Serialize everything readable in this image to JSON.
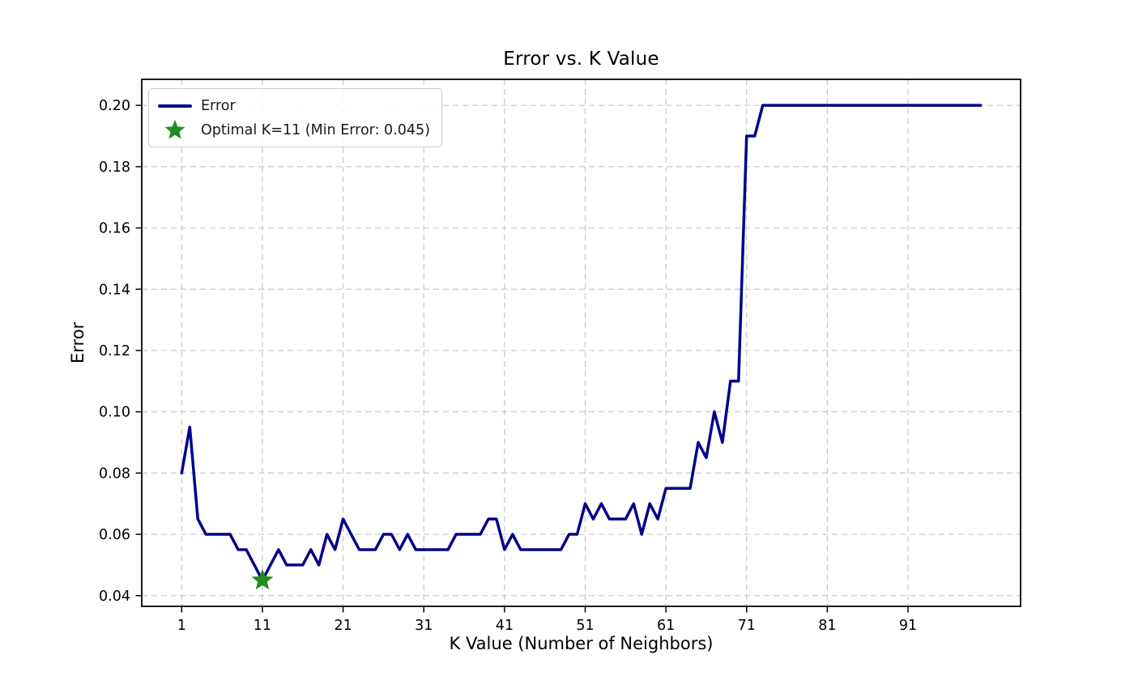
{
  "figure": {
    "title": "Error vs. K Value",
    "xlabel": "K Value (Number of Neighbors)",
    "ylabel": "Error"
  },
  "legend": {
    "position": "upper left",
    "items": [
      {
        "label": "Error",
        "marker": "line",
        "color": "#00008B"
      },
      {
        "label": "Optimal K=11 (Min Error: 0.045)",
        "marker": "star",
        "color": "#228B22"
      }
    ]
  },
  "colors": {
    "line": "#00008B",
    "star": "#228B22",
    "grid": "#c9c9c9",
    "spine": "#000000",
    "text": "#000000",
    "legend_border": "#cccccc",
    "background": "#ffffff"
  },
  "chart_data": {
    "type": "line",
    "title": "Error vs. K Value",
    "xlabel": "K Value (Number of Neighbors)",
    "ylabel": "Error",
    "grid": true,
    "grid_style": "dashed",
    "legend_position": "upper left",
    "x_ticks": [
      1,
      11,
      21,
      31,
      41,
      51,
      61,
      71,
      81,
      91
    ],
    "y_ticks": [
      0.04,
      0.06,
      0.08,
      0.1,
      0.12,
      0.14,
      0.16,
      0.18,
      0.2
    ],
    "y_tick_labels": [
      "0.04",
      "0.06",
      "0.08",
      "0.10",
      "0.12",
      "0.14",
      "0.16",
      "0.18",
      "0.20"
    ],
    "xlim": [
      -3.95,
      104.95
    ],
    "ylim": [
      0.0365,
      0.2085
    ],
    "series": [
      {
        "name": "Error",
        "color": "#00008B",
        "x": [
          1,
          2,
          3,
          4,
          5,
          6,
          7,
          8,
          9,
          10,
          11,
          12,
          13,
          14,
          15,
          16,
          17,
          18,
          19,
          20,
          21,
          22,
          23,
          24,
          25,
          26,
          27,
          28,
          29,
          30,
          31,
          32,
          33,
          34,
          35,
          36,
          37,
          38,
          39,
          40,
          41,
          42,
          43,
          44,
          45,
          46,
          47,
          48,
          49,
          50,
          51,
          52,
          53,
          54,
          55,
          56,
          57,
          58,
          59,
          60,
          61,
          62,
          63,
          64,
          65,
          66,
          67,
          68,
          69,
          70,
          71,
          72,
          73,
          74,
          75,
          76,
          77,
          78,
          79,
          80,
          81,
          82,
          83,
          84,
          85,
          86,
          87,
          88,
          89,
          90,
          91,
          92,
          93,
          94,
          95,
          96,
          97,
          98,
          99,
          100
        ],
        "y": [
          0.08,
          0.095,
          0.065,
          0.06,
          0.06,
          0.06,
          0.06,
          0.055,
          0.055,
          0.05,
          0.045,
          0.05,
          0.055,
          0.05,
          0.05,
          0.05,
          0.055,
          0.05,
          0.06,
          0.055,
          0.065,
          0.06,
          0.055,
          0.055,
          0.055,
          0.06,
          0.06,
          0.055,
          0.06,
          0.055,
          0.055,
          0.055,
          0.055,
          0.055,
          0.06,
          0.06,
          0.06,
          0.06,
          0.065,
          0.065,
          0.055,
          0.06,
          0.055,
          0.055,
          0.055,
          0.055,
          0.055,
          0.055,
          0.06,
          0.06,
          0.07,
          0.065,
          0.07,
          0.065,
          0.065,
          0.065,
          0.07,
          0.06,
          0.07,
          0.065,
          0.075,
          0.075,
          0.075,
          0.075,
          0.09,
          0.085,
          0.1,
          0.09,
          0.11,
          0.11,
          0.19,
          0.19,
          0.2,
          0.2,
          0.2,
          0.2,
          0.2,
          0.2,
          0.2,
          0.2,
          0.2,
          0.2,
          0.2,
          0.2,
          0.2,
          0.2,
          0.2,
          0.2,
          0.2,
          0.2,
          0.2,
          0.2,
          0.2,
          0.2,
          0.2,
          0.2,
          0.2,
          0.2,
          0.2,
          0.2
        ]
      }
    ],
    "optimal_point": {
      "x": 11,
      "y": 0.045,
      "marker": "star",
      "color": "#228B22",
      "label": "Optimal K=11 (Min Error: 0.045)"
    }
  }
}
